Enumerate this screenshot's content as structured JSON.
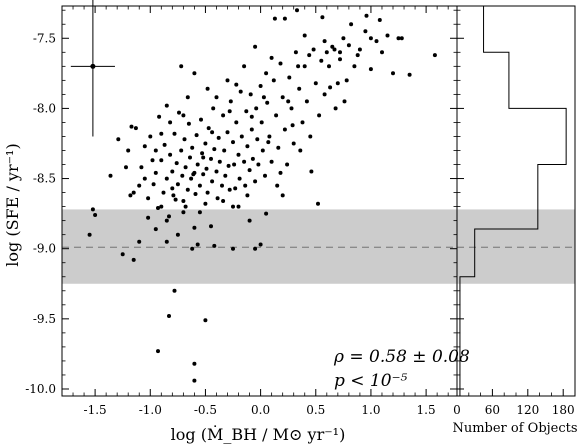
{
  "chart_data": [
    {
      "type": "scatter",
      "xlabel": "log (Ṁ_BH / M⊙ yr⁻¹)",
      "ylabel": "log (SFE / yr⁻¹)",
      "xlim": [
        -1.8,
        1.78
      ],
      "ylim": [
        -10.05,
        -7.27
      ],
      "x_ticks": [
        "-1.5",
        "-1.0",
        "-0.5",
        "0.0",
        "0.5",
        "1.0",
        "1.5"
      ],
      "y_ticks": [
        "-7.5",
        "-8.0",
        "-8.5",
        "-9.0",
        "-9.5",
        "-10.0"
      ],
      "grid": false,
      "shaded_band": {
        "y_from": -9.25,
        "y_to": -8.72,
        "color": "#cccccc"
      },
      "reference_line": {
        "y": -8.99,
        "style": "dashed",
        "color": "#888888"
      },
      "error_bar_example": {
        "x": -1.52,
        "y": -7.7,
        "x_err": 0.2,
        "y_err": 0.5
      },
      "annotations": {
        "rho": "ρ = 0.58 ± 0.08",
        "p": "p < 10⁻⁵"
      },
      "points": [
        [
          -1.52,
          -8.72
        ],
        [
          -1.5,
          -8.76
        ],
        [
          -1.55,
          -8.9
        ],
        [
          -1.36,
          -8.48
        ],
        [
          -1.29,
          -8.22
        ],
        [
          -1.25,
          -9.04
        ],
        [
          -1.15,
          -9.08
        ],
        [
          -1.2,
          -8.3
        ],
        [
          -1.17,
          -8.13
        ],
        [
          -1.13,
          -8.14
        ],
        [
          -1.18,
          -8.62
        ],
        [
          -1.1,
          -8.55
        ],
        [
          -1.08,
          -8.42
        ],
        [
          -1.05,
          -8.27
        ],
        [
          -1.02,
          -8.64
        ],
        [
          -1.0,
          -8.2
        ],
        [
          -0.97,
          -8.54
        ],
        [
          -0.95,
          -8.46
        ],
        [
          -0.93,
          -8.71
        ],
        [
          -0.92,
          -8.06
        ],
        [
          -0.9,
          -8.37
        ],
        [
          -0.88,
          -8.6
        ],
        [
          -0.87,
          -8.26
        ],
        [
          -0.85,
          -8.5
        ],
        [
          -0.83,
          -8.77
        ],
        [
          -0.82,
          -8.33
        ],
        [
          -0.8,
          -8.45
        ],
        [
          -0.79,
          -8.62
        ],
        [
          -0.78,
          -8.18
        ],
        [
          -0.76,
          -8.39
        ],
        [
          -0.75,
          -8.54
        ],
        [
          -0.74,
          -8.03
        ],
        [
          -0.72,
          -8.3
        ],
        [
          -0.71,
          -8.48
        ],
        [
          -0.7,
          -8.66
        ],
        [
          -0.69,
          -8.22
        ],
        [
          -0.68,
          -8.42
        ],
        [
          -0.66,
          -8.58
        ],
        [
          -0.65,
          -8.11
        ],
        [
          -0.64,
          -8.35
        ],
        [
          -0.63,
          -8.5
        ],
        [
          -0.62,
          -8.28
        ],
        [
          -0.6,
          -8.46
        ],
        [
          -0.59,
          -8.61
        ],
        [
          -0.58,
          -8.19
        ],
        [
          -0.57,
          -8.4
        ],
        [
          -0.55,
          -8.55
        ],
        [
          -0.54,
          -8.08
        ],
        [
          -0.53,
          -8.32
        ],
        [
          -0.52,
          -8.47
        ],
        [
          -0.5,
          -8.25
        ],
        [
          -0.49,
          -8.43
        ],
        [
          -0.48,
          -8.6
        ],
        [
          -0.47,
          -8.14
        ],
        [
          -0.45,
          -8.36
        ],
        [
          -0.44,
          -8.52
        ],
        [
          -0.43,
          -8.0
        ],
        [
          -0.42,
          -8.29
        ],
        [
          -0.4,
          -8.45
        ],
        [
          -0.39,
          -8.64
        ],
        [
          -0.38,
          -8.21
        ],
        [
          -0.37,
          -8.38
        ],
        [
          -0.35,
          -8.55
        ],
        [
          -0.34,
          -8.05
        ],
        [
          -0.33,
          -8.3
        ],
        [
          -0.32,
          -8.48
        ],
        [
          -0.3,
          -8.17
        ],
        [
          -0.29,
          -8.41
        ],
        [
          -0.28,
          -8.58
        ],
        [
          -0.27,
          -7.95
        ],
        [
          -0.25,
          -8.24
        ],
        [
          -0.24,
          -8.4
        ],
        [
          -0.23,
          -8.57
        ],
        [
          -0.22,
          -8.1
        ],
        [
          -0.2,
          -8.33
        ],
        [
          -0.19,
          -8.5
        ],
        [
          -0.18,
          -7.88
        ],
        [
          -0.17,
          -8.2
        ],
        [
          -0.15,
          -8.38
        ],
        [
          -0.14,
          -8.55
        ],
        [
          -0.13,
          -8.02
        ],
        [
          -0.12,
          -8.27
        ],
        [
          -0.1,
          -8.44
        ],
        [
          -0.09,
          -7.9
        ],
        [
          -0.08,
          -8.15
        ],
        [
          -0.07,
          -8.36
        ],
        [
          -0.05,
          -8.52
        ],
        [
          -0.04,
          -8.0
        ],
        [
          -0.03,
          -8.22
        ],
        [
          -0.02,
          -8.4
        ],
        [
          0.0,
          -7.84
        ],
        [
          0.01,
          -8.1
        ],
        [
          0.02,
          -8.3
        ],
        [
          0.04,
          -8.48
        ],
        [
          0.05,
          -7.75
        ],
        [
          0.06,
          -7.96
        ],
        [
          0.08,
          -8.2
        ],
        [
          0.1,
          -8.38
        ],
        [
          0.12,
          -7.8
        ],
        [
          0.14,
          -8.05
        ],
        [
          0.16,
          -8.28
        ],
        [
          0.18,
          -7.68
        ],
        [
          0.2,
          -7.92
        ],
        [
          0.22,
          -8.15
        ],
        [
          0.24,
          -8.4
        ],
        [
          0.26,
          -7.78
        ],
        [
          0.28,
          -8.0
        ],
        [
          0.3,
          -8.25
        ],
        [
          0.32,
          -7.6
        ],
        [
          0.35,
          -7.86
        ],
        [
          0.38,
          -8.1
        ],
        [
          0.4,
          -7.7
        ],
        [
          0.42,
          -7.95
        ],
        [
          0.45,
          -8.2
        ],
        [
          0.48,
          -7.58
        ],
        [
          0.5,
          -7.82
        ],
        [
          0.53,
          -8.05
        ],
        [
          0.55,
          -7.66
        ],
        [
          0.58,
          -7.9
        ],
        [
          0.6,
          -7.6
        ],
        [
          0.63,
          -7.85
        ],
        [
          0.65,
          -7.56
        ],
        [
          0.68,
          -8.0
        ],
        [
          0.72,
          -7.65
        ],
        [
          0.75,
          -7.5
        ],
        [
          0.78,
          -7.8
        ],
        [
          0.8,
          -7.55
        ],
        [
          0.85,
          -7.7
        ],
        [
          0.9,
          -7.58
        ],
        [
          0.95,
          -7.45
        ],
        [
          1.0,
          -7.72
        ],
        [
          1.05,
          -7.52
        ],
        [
          1.1,
          -7.6
        ],
        [
          1.15,
          -7.48
        ],
        [
          1.2,
          -7.75
        ],
        [
          1.25,
          -7.5
        ],
        [
          1.28,
          -7.5
        ],
        [
          1.35,
          -7.76
        ],
        [
          1.58,
          -7.62
        ],
        [
          0.33,
          -7.3
        ],
        [
          0.13,
          -7.36
        ],
        [
          0.22,
          -7.36
        ],
        [
          0.56,
          -7.35
        ],
        [
          0.96,
          -7.34
        ],
        [
          1.08,
          -7.37
        ],
        [
          1.0,
          -7.5
        ],
        [
          0.72,
          -7.6
        ],
        [
          0.82,
          -7.4
        ],
        [
          0.4,
          -7.48
        ],
        [
          -0.05,
          -7.56
        ],
        [
          -0.3,
          -7.8
        ],
        [
          -0.6,
          -7.75
        ],
        [
          -0.85,
          -7.98
        ],
        [
          -0.72,
          -7.7
        ],
        [
          -0.4,
          -7.92
        ],
        [
          -0.15,
          -7.7
        ],
        [
          0.1,
          -7.64
        ],
        [
          -0.9,
          -8.7
        ],
        [
          -0.55,
          -8.74
        ],
        [
          -0.6,
          -8.85
        ],
        [
          -0.75,
          -8.9
        ],
        [
          -0.85,
          -8.8
        ],
        [
          -0.45,
          -8.84
        ],
        [
          -0.2,
          -8.7
        ],
        [
          -0.1,
          -8.8
        ],
        [
          0.0,
          -8.97
        ],
        [
          0.05,
          -8.75
        ],
        [
          -0.25,
          -8.7
        ],
        [
          -0.5,
          -8.68
        ],
        [
          -0.68,
          -8.7
        ],
        [
          -0.62,
          -9.0
        ],
        [
          -0.95,
          -8.86
        ],
        [
          -1.02,
          -8.78
        ],
        [
          -0.8,
          -8.57
        ],
        [
          -0.7,
          -8.74
        ],
        [
          -0.42,
          -8.98
        ],
        [
          -0.57,
          -8.97
        ],
        [
          0.52,
          -8.68
        ],
        [
          0.2,
          -8.62
        ],
        [
          0.15,
          -8.55
        ],
        [
          -0.78,
          -9.3
        ],
        [
          -0.83,
          -9.48
        ],
        [
          -0.5,
          -9.51
        ],
        [
          -0.93,
          -9.73
        ],
        [
          -0.6,
          -9.82
        ],
        [
          -0.6,
          -9.94
        ],
        [
          -0.05,
          -9.0
        ],
        [
          -0.25,
          -9.0
        ],
        [
          -0.85,
          -8.95
        ],
        [
          -1.1,
          -8.95
        ],
        [
          -1.15,
          -8.6
        ],
        [
          -1.22,
          -8.42
        ],
        [
          -0.98,
          -8.37
        ],
        [
          -0.9,
          -8.18
        ],
        [
          -0.82,
          -8.1
        ],
        [
          -0.66,
          -7.92
        ],
        [
          -0.48,
          -7.86
        ],
        [
          -0.22,
          -7.83
        ],
        [
          0.03,
          -7.92
        ],
        [
          0.25,
          -7.95
        ],
        [
          0.36,
          -8.3
        ],
        [
          0.46,
          -8.45
        ],
        [
          -0.12,
          -8.62
        ],
        [
          -0.34,
          -8.66
        ],
        [
          -0.52,
          -8.35
        ],
        [
          -0.7,
          -8.05
        ],
        [
          -0.95,
          -8.3
        ],
        [
          -1.05,
          -8.5
        ],
        [
          -0.77,
          -8.65
        ],
        [
          -0.61,
          -8.47
        ],
        [
          -0.44,
          -8.17
        ],
        [
          -0.28,
          -8.02
        ],
        [
          -0.08,
          -8.06
        ],
        [
          0.07,
          -8.24
        ],
        [
          0.18,
          -8.46
        ],
        [
          0.29,
          -8.12
        ],
        [
          0.34,
          -7.7
        ],
        [
          0.44,
          -7.62
        ],
        [
          0.58,
          -7.52
        ],
        [
          0.62,
          -7.7
        ],
        [
          0.7,
          -7.82
        ],
        [
          0.76,
          -7.95
        ],
        [
          0.67,
          -7.58
        ],
        [
          0.88,
          -7.62
        ]
      ]
    },
    {
      "type": "step-histogram",
      "xlabel": "Number of Objects",
      "x_ticks": [
        "0",
        "60",
        "120",
        "180"
      ],
      "xlim": [
        0,
        200
      ],
      "bins": [
        {
          "y_from": -7.27,
          "y_to": -7.6,
          "count": 45
        },
        {
          "y_from": -7.6,
          "y_to": -8.0,
          "count": 88
        },
        {
          "y_from": -8.0,
          "y_to": -8.4,
          "count": 185
        },
        {
          "y_from": -8.4,
          "y_to": -8.86,
          "count": 137
        },
        {
          "y_from": -8.86,
          "y_to": -9.2,
          "count": 30
        },
        {
          "y_from": -9.2,
          "y_to": -10.05,
          "count": 5
        }
      ]
    }
  ]
}
